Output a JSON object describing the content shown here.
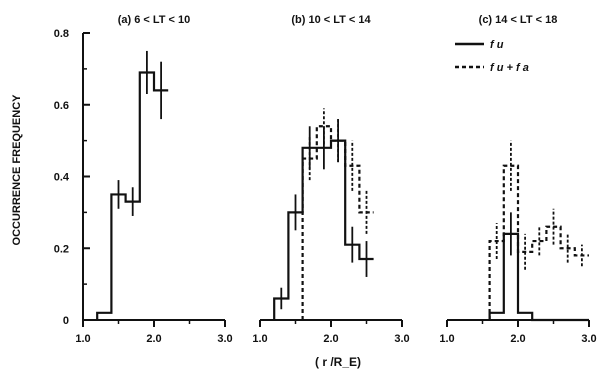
{
  "ylabel": "OCCURRENCE FREQUENCY",
  "xlabel": "( r /R_E)",
  "legend": [
    {
      "label": "f u",
      "style": "solid"
    },
    {
      "label": "f u + f a",
      "style": "dashed"
    }
  ],
  "chart_data": [
    {
      "type": "step",
      "title": "(a) 6 < LT < 10",
      "xlim": [
        1.0,
        3.0
      ],
      "ylim": [
        0,
        0.8
      ],
      "xticks": [
        "1.0",
        "2.0",
        "3.0"
      ],
      "yticks": [
        "0",
        "0.2",
        "0.4",
        "0.6",
        "0.8"
      ],
      "series": [
        {
          "style": "solid",
          "x": [
            1.3,
            1.5,
            1.7,
            1.9,
            2.1
          ],
          "y": [
            0.02,
            0.35,
            0.33,
            0.69,
            0.64
          ],
          "err": [
            0.0,
            0.04,
            0.04,
            0.06,
            0.08
          ]
        }
      ]
    },
    {
      "type": "step",
      "title": "(b) 10 < LT < 14",
      "xlim": [
        1.0,
        3.0
      ],
      "ylim": [
        0,
        0.8
      ],
      "xticks": [
        "1.0",
        "2.0",
        "3.0"
      ],
      "series": [
        {
          "style": "solid",
          "x": [
            1.3,
            1.5,
            1.7,
            1.9,
            2.1,
            2.3,
            2.5
          ],
          "y": [
            0.06,
            0.3,
            0.48,
            0.48,
            0.5,
            0.21,
            0.17
          ],
          "err": [
            0.03,
            0.05,
            0.06,
            0.06,
            0.06,
            0.05,
            0.05
          ]
        },
        {
          "style": "dashed",
          "x": [
            1.7,
            1.9,
            2.1,
            2.3,
            2.5
          ],
          "y": [
            0.45,
            0.54,
            0.5,
            0.43,
            0.3
          ],
          "err": [
            0.06,
            0.05,
            0.06,
            0.07,
            0.06
          ]
        }
      ]
    },
    {
      "type": "step",
      "title": "(c) 14 < LT < 18",
      "xlim": [
        1.0,
        3.0
      ],
      "ylim": [
        0,
        0.8
      ],
      "xticks": [
        "1.0",
        "2.0",
        "3.0"
      ],
      "series": [
        {
          "style": "solid",
          "x": [
            1.7,
            1.9,
            2.1,
            2.3,
            2.5,
            2.7,
            2.9
          ],
          "y": [
            0.02,
            0.24,
            0.02,
            0.0,
            0.0,
            0.0,
            0.0
          ],
          "err": [
            0.0,
            0.06,
            0.0,
            0.0,
            0.0,
            0.0,
            0.0
          ]
        },
        {
          "style": "dashed",
          "x": [
            1.7,
            1.9,
            2.1,
            2.3,
            2.5,
            2.7,
            2.9
          ],
          "y": [
            0.22,
            0.43,
            0.19,
            0.22,
            0.26,
            0.2,
            0.18
          ],
          "err": [
            0.05,
            0.07,
            0.05,
            0.04,
            0.05,
            0.04,
            0.03
          ]
        }
      ]
    }
  ]
}
